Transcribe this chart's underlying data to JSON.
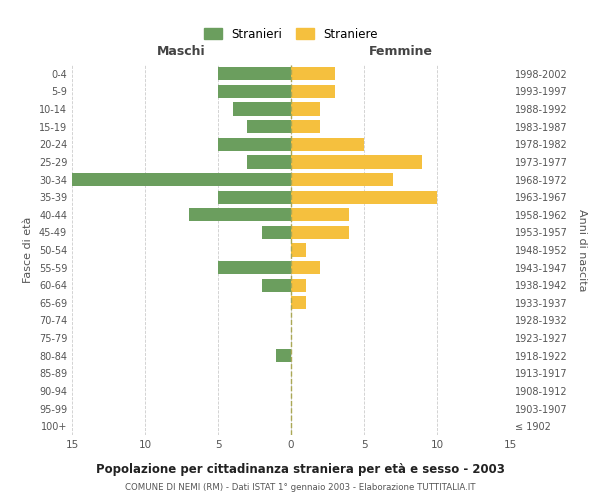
{
  "age_groups": [
    "100+",
    "95-99",
    "90-94",
    "85-89",
    "80-84",
    "75-79",
    "70-74",
    "65-69",
    "60-64",
    "55-59",
    "50-54",
    "45-49",
    "40-44",
    "35-39",
    "30-34",
    "25-29",
    "20-24",
    "15-19",
    "10-14",
    "5-9",
    "0-4"
  ],
  "birth_years": [
    "≤ 1902",
    "1903-1907",
    "1908-1912",
    "1913-1917",
    "1918-1922",
    "1923-1927",
    "1928-1932",
    "1933-1937",
    "1938-1942",
    "1943-1947",
    "1948-1952",
    "1953-1957",
    "1958-1962",
    "1963-1967",
    "1968-1972",
    "1973-1977",
    "1978-1982",
    "1983-1987",
    "1988-1992",
    "1993-1997",
    "1998-2002"
  ],
  "maschi": [
    0,
    0,
    0,
    0,
    1,
    0,
    0,
    0,
    2,
    5,
    0,
    2,
    7,
    5,
    16,
    3,
    5,
    3,
    4,
    5,
    5
  ],
  "femmine": [
    0,
    0,
    0,
    0,
    0,
    0,
    0,
    1,
    1,
    2,
    1,
    4,
    4,
    10,
    7,
    9,
    5,
    2,
    2,
    3,
    3
  ],
  "color_maschi": "#6b9e5e",
  "color_femmine": "#f5c03e",
  "background_color": "#ffffff",
  "grid_color": "#cccccc",
  "title": "Popolazione per cittadinanza straniera per età e sesso - 2003",
  "subtitle": "COMUNE DI NEMI (RM) - Dati ISTAT 1° gennaio 2003 - Elaborazione TUTTITALIA.IT",
  "xlabel_left": "Maschi",
  "xlabel_right": "Femmine",
  "ylabel_left": "Fasce di età",
  "ylabel_right": "Anni di nascita",
  "xlim": 15,
  "legend_stranieri": "Stranieri",
  "legend_straniere": "Straniere"
}
